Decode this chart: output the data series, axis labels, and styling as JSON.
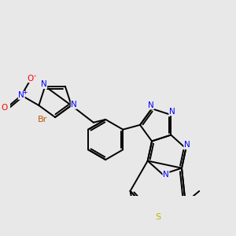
{
  "bg_color": "#e8e8e8",
  "bond_color": "#000000",
  "bond_width": 1.4,
  "atom_colors": {
    "N": "#0000ff",
    "O": "#ff0000",
    "Br": "#b85c00",
    "S": "#b8b800",
    "C": "#000000"
  },
  "font_size": 7.5,
  "figsize": [
    3.0,
    3.0
  ],
  "dpi": 100
}
